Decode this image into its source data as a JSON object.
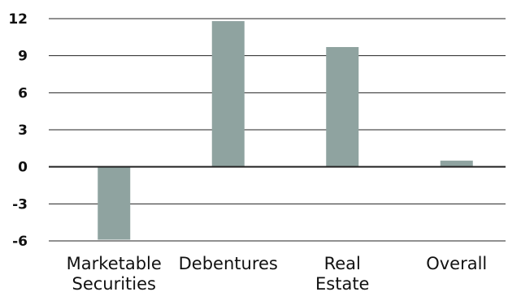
{
  "chart_data": {
    "type": "bar",
    "title": "",
    "xlabel": "",
    "ylabel": "",
    "categories": [
      [
        "Marketable",
        "Securities"
      ],
      [
        "Debentures"
      ],
      [
        "Real",
        "Estate"
      ],
      [
        "Overall"
      ]
    ],
    "values": [
      -5.9,
      11.8,
      9.7,
      0.5
    ],
    "ylim": [
      -6,
      12
    ],
    "yticks": [
      "12",
      "9",
      "6",
      "3",
      "0",
      "-3",
      "-6"
    ],
    "ytick_values": [
      12,
      9,
      6,
      3,
      0,
      -3,
      -6
    ],
    "grid": "horizontal",
    "legend": "none",
    "colors": {
      "bar": "#8fa3a0",
      "grid": "#222222",
      "text": "#111111"
    }
  }
}
